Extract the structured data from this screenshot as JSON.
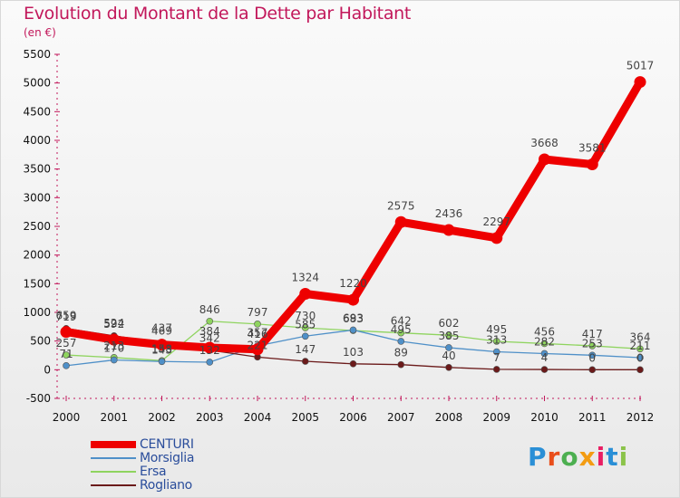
{
  "title": "Evolution du Montant de la Dette par Habitant",
  "subtitle": "(en €)",
  "logo": {
    "text": "Proxiti",
    "colors": [
      "#2a8fd6",
      "#e94e1b",
      "#4caf50",
      "#f39c12",
      "#e91e63",
      "#2a8fd6",
      "#8bc34a"
    ]
  },
  "chart_data": {
    "type": "line",
    "x": [
      "2000",
      "2001",
      "2002",
      "2003",
      "2004",
      "2005",
      "2006",
      "2007",
      "2008",
      "2009",
      "2010",
      "2011",
      "2012"
    ],
    "ylim": [
      -500,
      5500
    ],
    "yticks": [
      -500,
      0,
      500,
      1000,
      1500,
      2000,
      2500,
      3000,
      3500,
      4000,
      4500,
      5000,
      5500
    ],
    "legend_position": "bottom-left",
    "grid": false,
    "series": [
      {
        "name": "CENTURI",
        "color": "#ee0000",
        "values": [
          659,
          524,
          437,
          384,
          357,
          1324,
          1220,
          2575,
          2436,
          2297,
          3668,
          3581,
          5017
        ]
      },
      {
        "name": "Morsiglia",
        "color": "#4f90c8",
        "values": [
          71,
          170,
          143,
          132,
          416,
          585,
          693,
          495,
          385,
          313,
          282,
          253,
          211
        ]
      },
      {
        "name": "Ersa",
        "color": "#8fd45f",
        "values": [
          257,
          213,
          158,
          846,
          797,
          730,
          683,
          642,
          602,
          495,
          456,
          417,
          364
        ]
      },
      {
        "name": "Rogliano",
        "color": "#6b1a1a",
        "values": [
          719,
          592,
          469,
          342,
          221,
          147,
          103,
          89,
          40,
          7,
          4,
          0,
          0
        ]
      }
    ],
    "labels": {
      "CENTURI": [
        "659",
        "524",
        "437",
        "384",
        "357",
        "1324",
        "1220",
        "2575",
        "2436",
        "2297",
        "3668",
        "3581",
        "5017"
      ],
      "Morsiglia": [
        "71",
        "170",
        "143",
        "132",
        "416",
        "585",
        "693",
        "495",
        "385",
        "313",
        "282",
        "253",
        "211"
      ],
      "Ersa": [
        "257",
        "213",
        "158",
        "846",
        "797",
        "730",
        "683",
        "642",
        "602",
        "495",
        "456",
        "417",
        "364"
      ],
      "Rogliano": [
        "719",
        "592",
        "469",
        "342",
        "221",
        "147",
        "103",
        "89",
        "40",
        "7",
        "4",
        "0",
        "0"
      ]
    }
  }
}
